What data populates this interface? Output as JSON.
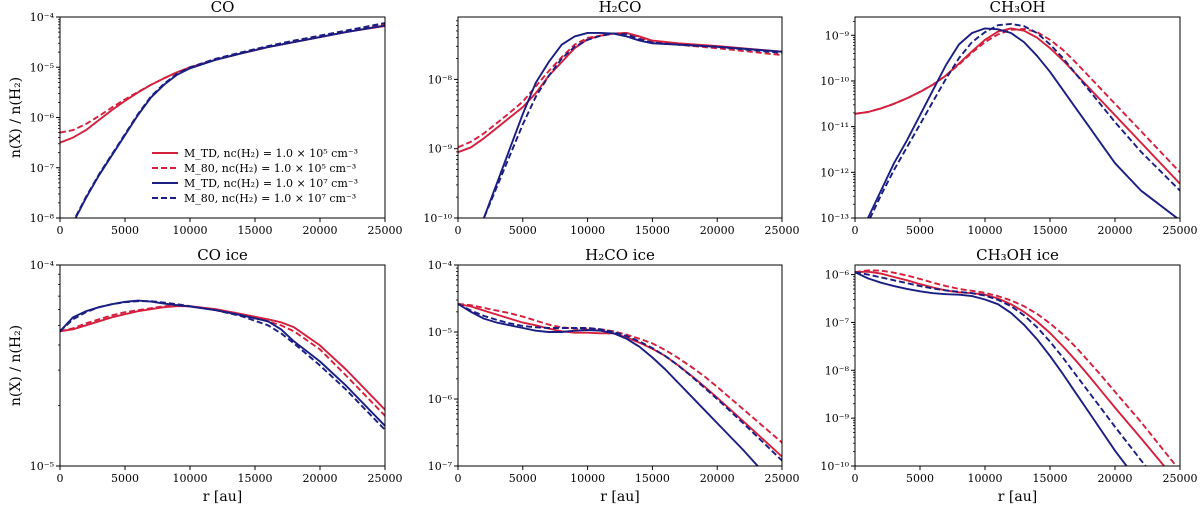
{
  "figure": {
    "ylabel": "n(X) / n(H₂)",
    "xlabel": "r [au]",
    "colors": {
      "red": "#d41f3d",
      "blue": "#1a1e82"
    }
  },
  "legend": [
    {
      "label": "M_TD, nc(H₂) = 1.0 × 10⁵ cm⁻³",
      "color": "#d41f3d",
      "dash": false
    },
    {
      "label": "M_80, nc(H₂) = 1.0 × 10⁵ cm⁻³",
      "color": "#d41f3d",
      "dash": true
    },
    {
      "label": "M_TD, nc(H₂) = 1.0 × 10⁷ cm⁻³",
      "color": "#1a1e82",
      "dash": false
    },
    {
      "label": "M_80, nc(H₂) = 1.0 × 10⁷ cm⁻³",
      "color": "#1a1e82",
      "dash": true
    }
  ],
  "chart_data": [
    {
      "type": "line",
      "title": "CO",
      "xlim": [
        0,
        25000
      ],
      "ylim_exp": [
        -8,
        -4
      ],
      "yscale": "log",
      "x_ticks": [
        0,
        5000,
        10000,
        15000,
        20000,
        25000
      ],
      "x": [
        0,
        1000,
        2000,
        3000,
        4000,
        5000,
        6000,
        7000,
        8000,
        9000,
        10000,
        12000,
        14000,
        16000,
        18000,
        20000,
        22000,
        25000
      ],
      "series": [
        {
          "color": "red",
          "dash": false,
          "log10": [
            -6.5,
            -6.4,
            -6.25,
            -6.05,
            -5.85,
            -5.67,
            -5.5,
            -5.35,
            -5.22,
            -5.1,
            -5.0,
            -4.85,
            -4.72,
            -4.6,
            -4.5,
            -4.4,
            -4.3,
            -4.18
          ]
        },
        {
          "color": "red",
          "dash": true,
          "log10": [
            -6.3,
            -6.25,
            -6.13,
            -5.97,
            -5.8,
            -5.64,
            -5.49,
            -5.35,
            -5.22,
            -5.1,
            -5.0,
            -4.85,
            -4.72,
            -4.6,
            -4.5,
            -4.4,
            -4.3,
            -4.15
          ]
        },
        {
          "color": "blue",
          "dash": false,
          "log10": [
            -8.4,
            -8.1,
            -7.6,
            -7.15,
            -6.75,
            -6.35,
            -5.95,
            -5.6,
            -5.35,
            -5.15,
            -5.02,
            -4.85,
            -4.72,
            -4.6,
            -4.5,
            -4.4,
            -4.3,
            -4.17
          ]
        },
        {
          "color": "blue",
          "dash": true,
          "log10": [
            -8.4,
            -8.08,
            -7.58,
            -7.13,
            -6.73,
            -6.33,
            -5.93,
            -5.58,
            -5.33,
            -5.13,
            -5.0,
            -4.83,
            -4.7,
            -4.58,
            -4.47,
            -4.37,
            -4.27,
            -4.12
          ]
        }
      ]
    },
    {
      "type": "line",
      "title": "H₂CO",
      "xlim": [
        0,
        25000
      ],
      "ylim_exp": [
        -10,
        -7.1
      ],
      "yscale": "log",
      "x_ticks": [
        0,
        5000,
        10000,
        15000,
        20000,
        25000
      ],
      "x": [
        0,
        1000,
        2000,
        3000,
        4000,
        5000,
        6000,
        7000,
        8000,
        9000,
        10000,
        11000,
        12000,
        13000,
        14000,
        15000,
        17000,
        20000,
        25000
      ],
      "series": [
        {
          "color": "red",
          "dash": false,
          "log10": [
            -9.05,
            -8.98,
            -8.85,
            -8.7,
            -8.55,
            -8.4,
            -8.2,
            -7.95,
            -7.75,
            -7.55,
            -7.42,
            -7.37,
            -7.34,
            -7.33,
            -7.38,
            -7.44,
            -7.48,
            -7.52,
            -7.6
          ]
        },
        {
          "color": "red",
          "dash": true,
          "log10": [
            -8.98,
            -8.9,
            -8.78,
            -8.63,
            -8.48,
            -8.32,
            -8.1,
            -7.88,
            -7.68,
            -7.5,
            -7.4,
            -7.37,
            -7.34,
            -7.33,
            -7.39,
            -7.46,
            -7.5,
            -7.55,
            -7.65
          ]
        },
        {
          "color": "blue",
          "dash": false,
          "log10": [
            -10.8,
            -10.5,
            -10.0,
            -9.5,
            -9.0,
            -8.5,
            -8.05,
            -7.75,
            -7.5,
            -7.38,
            -7.33,
            -7.33,
            -7.34,
            -7.38,
            -7.44,
            -7.48,
            -7.5,
            -7.53,
            -7.6
          ]
        },
        {
          "color": "blue",
          "dash": true,
          "log10": [
            -10.8,
            -10.5,
            -10.0,
            -9.55,
            -9.1,
            -8.65,
            -8.25,
            -7.95,
            -7.7,
            -7.53,
            -7.43,
            -7.37,
            -7.34,
            -7.35,
            -7.42,
            -7.47,
            -7.5,
            -7.53,
            -7.62
          ]
        }
      ]
    },
    {
      "type": "line",
      "title": "CH₃OH",
      "xlim": [
        0,
        25000
      ],
      "ylim_exp": [
        -13,
        -8.6
      ],
      "yscale": "log",
      "x_ticks": [
        0,
        5000,
        10000,
        15000,
        20000,
        25000
      ],
      "x": [
        0,
        1000,
        2000,
        3000,
        4000,
        5000,
        6000,
        7000,
        8000,
        9000,
        10000,
        11000,
        12000,
        13000,
        14000,
        15000,
        16000,
        17000,
        18000,
        19000,
        20000,
        22000,
        25000
      ],
      "series": [
        {
          "color": "red",
          "dash": false,
          "log10": [
            -10.72,
            -10.68,
            -10.6,
            -10.5,
            -10.38,
            -10.24,
            -10.08,
            -9.88,
            -9.62,
            -9.35,
            -9.1,
            -8.92,
            -8.85,
            -8.9,
            -9.05,
            -9.28,
            -9.55,
            -9.85,
            -10.15,
            -10.45,
            -10.75,
            -11.35,
            -12.25
          ]
        },
        {
          "color": "red",
          "dash": true,
          "log10": [
            -10.72,
            -10.68,
            -10.6,
            -10.5,
            -10.38,
            -10.24,
            -10.08,
            -9.88,
            -9.64,
            -9.38,
            -9.15,
            -8.98,
            -8.88,
            -8.86,
            -8.93,
            -9.1,
            -9.32,
            -9.6,
            -9.9,
            -10.2,
            -10.5,
            -11.1,
            -12.0
          ]
        },
        {
          "color": "blue",
          "dash": false,
          "log10": [
            -13.5,
            -13.0,
            -12.4,
            -11.8,
            -11.3,
            -10.75,
            -10.2,
            -9.65,
            -9.2,
            -8.95,
            -8.85,
            -8.87,
            -8.95,
            -9.15,
            -9.45,
            -9.8,
            -10.2,
            -10.6,
            -11.0,
            -11.4,
            -11.8,
            -12.4,
            -13.05
          ]
        },
        {
          "color": "blue",
          "dash": true,
          "log10": [
            -13.5,
            -13.1,
            -12.5,
            -11.95,
            -11.45,
            -10.95,
            -10.45,
            -9.95,
            -9.5,
            -9.15,
            -8.93,
            -8.78,
            -8.75,
            -8.8,
            -8.95,
            -9.2,
            -9.5,
            -9.85,
            -10.2,
            -10.55,
            -10.9,
            -11.55,
            -12.4
          ]
        }
      ]
    },
    {
      "type": "line",
      "title": "CO ice",
      "xlim": [
        0,
        25000
      ],
      "ylim_exp": [
        -5,
        -4
      ],
      "yscale": "log",
      "x_ticks": [
        0,
        5000,
        10000,
        15000,
        20000,
        25000
      ],
      "x": [
        0,
        1000,
        2000,
        3000,
        4000,
        5000,
        6000,
        7000,
        8000,
        9000,
        10000,
        12000,
        14000,
        16000,
        17000,
        18000,
        20000,
        22000,
        25000
      ],
      "series": [
        {
          "color": "red",
          "dash": false,
          "log10": [
            -4.33,
            -4.32,
            -4.3,
            -4.28,
            -4.26,
            -4.245,
            -4.23,
            -4.22,
            -4.21,
            -4.205,
            -4.205,
            -4.22,
            -4.245,
            -4.27,
            -4.285,
            -4.31,
            -4.4,
            -4.52,
            -4.72
          ]
        },
        {
          "color": "red",
          "dash": true,
          "log10": [
            -4.33,
            -4.315,
            -4.29,
            -4.27,
            -4.25,
            -4.235,
            -4.225,
            -4.215,
            -4.205,
            -4.2,
            -4.205,
            -4.225,
            -4.25,
            -4.28,
            -4.3,
            -4.33,
            -4.42,
            -4.55,
            -4.75
          ]
        },
        {
          "color": "blue",
          "dash": false,
          "log10": [
            -4.33,
            -4.26,
            -4.23,
            -4.21,
            -4.195,
            -4.183,
            -4.177,
            -4.182,
            -4.192,
            -4.2,
            -4.207,
            -4.225,
            -4.25,
            -4.28,
            -4.32,
            -4.38,
            -4.48,
            -4.6,
            -4.8
          ]
        },
        {
          "color": "blue",
          "dash": true,
          "log10": [
            -4.33,
            -4.27,
            -4.235,
            -4.21,
            -4.195,
            -4.185,
            -4.18,
            -4.18,
            -4.187,
            -4.195,
            -4.205,
            -4.225,
            -4.255,
            -4.3,
            -4.34,
            -4.39,
            -4.5,
            -4.62,
            -4.82
          ]
        }
      ]
    },
    {
      "type": "line",
      "title": "H₂CO ice",
      "xlim": [
        0,
        25000
      ],
      "ylim_exp": [
        -7,
        -4
      ],
      "yscale": "log",
      "x_ticks": [
        0,
        5000,
        10000,
        15000,
        20000,
        25000
      ],
      "x": [
        0,
        1000,
        2000,
        3000,
        4000,
        5000,
        6000,
        7000,
        8000,
        9000,
        10000,
        11000,
        12000,
        13000,
        14000,
        15000,
        16000,
        17000,
        18000,
        19000,
        20000,
        22000,
        25000
      ],
      "series": [
        {
          "color": "red",
          "dash": false,
          "log10": [
            -4.58,
            -4.62,
            -4.68,
            -4.74,
            -4.8,
            -4.86,
            -4.9,
            -4.95,
            -4.99,
            -5.01,
            -5.01,
            -5.02,
            -5.02,
            -5.08,
            -5.16,
            -5.25,
            -5.36,
            -5.5,
            -5.65,
            -5.81,
            -5.98,
            -6.33,
            -6.86
          ]
        },
        {
          "color": "red",
          "dash": true,
          "log10": [
            -4.58,
            -4.6,
            -4.64,
            -4.68,
            -4.72,
            -4.77,
            -4.83,
            -4.89,
            -4.93,
            -4.95,
            -4.95,
            -4.96,
            -4.99,
            -5.04,
            -5.1,
            -5.17,
            -5.27,
            -5.39,
            -5.52,
            -5.66,
            -5.82,
            -6.15,
            -6.65
          ]
        },
        {
          "color": "blue",
          "dash": false,
          "log10": [
            -4.58,
            -4.7,
            -4.8,
            -4.86,
            -4.9,
            -4.94,
            -4.98,
            -5.0,
            -5.0,
            -4.98,
            -4.97,
            -4.98,
            -5.02,
            -5.1,
            -5.22,
            -5.38,
            -5.56,
            -5.76,
            -5.96,
            -6.16,
            -6.36,
            -6.76,
            -7.4
          ]
        },
        {
          "color": "blue",
          "dash": true,
          "log10": [
            -4.58,
            -4.68,
            -4.76,
            -4.82,
            -4.87,
            -4.91,
            -4.93,
            -4.94,
            -4.94,
            -4.94,
            -4.94,
            -4.96,
            -5.0,
            -5.06,
            -5.14,
            -5.24,
            -5.36,
            -5.5,
            -5.66,
            -5.83,
            -6.0,
            -6.36,
            -6.92
          ]
        }
      ]
    },
    {
      "type": "line",
      "title": "CH₃OH ice",
      "xlim": [
        0,
        25000
      ],
      "ylim_exp": [
        -10,
        -5.8
      ],
      "yscale": "log",
      "x_ticks": [
        0,
        5000,
        10000,
        15000,
        20000,
        25000
      ],
      "x": [
        0,
        1000,
        2000,
        3000,
        4000,
        5000,
        6000,
        7000,
        8000,
        9000,
        10000,
        11000,
        12000,
        13000,
        14000,
        15000,
        16000,
        17000,
        18000,
        19000,
        20000,
        22000,
        25000
      ],
      "series": [
        {
          "color": "red",
          "dash": false,
          "log10": [
            -5.95,
            -5.94,
            -5.98,
            -6.05,
            -6.12,
            -6.2,
            -6.27,
            -6.33,
            -6.37,
            -6.39,
            -6.42,
            -6.5,
            -6.62,
            -6.78,
            -6.98,
            -7.22,
            -7.5,
            -7.8,
            -8.12,
            -8.45,
            -8.78,
            -9.42,
            -10.4
          ]
        },
        {
          "color": "red",
          "dash": true,
          "log10": [
            -5.95,
            -5.91,
            -5.92,
            -5.96,
            -6.02,
            -6.09,
            -6.17,
            -6.24,
            -6.3,
            -6.34,
            -6.38,
            -6.45,
            -6.54,
            -6.66,
            -6.82,
            -7.02,
            -7.25,
            -7.52,
            -7.82,
            -8.13,
            -8.45,
            -9.08,
            -10.1
          ]
        },
        {
          "color": "blue",
          "dash": false,
          "log10": [
            -5.95,
            -6.08,
            -6.17,
            -6.24,
            -6.3,
            -6.35,
            -6.39,
            -6.41,
            -6.42,
            -6.45,
            -6.52,
            -6.62,
            -6.8,
            -7.05,
            -7.35,
            -7.7,
            -8.08,
            -8.48,
            -8.88,
            -9.28,
            -9.68,
            -10.4,
            -11.3
          ]
        },
        {
          "color": "blue",
          "dash": true,
          "log10": [
            -5.95,
            -6.0,
            -6.06,
            -6.12,
            -6.18,
            -6.24,
            -6.29,
            -6.33,
            -6.36,
            -6.39,
            -6.44,
            -6.53,
            -6.66,
            -6.85,
            -7.1,
            -7.4,
            -7.74,
            -8.1,
            -8.46,
            -8.82,
            -9.18,
            -9.88,
            -10.9
          ]
        }
      ]
    }
  ]
}
